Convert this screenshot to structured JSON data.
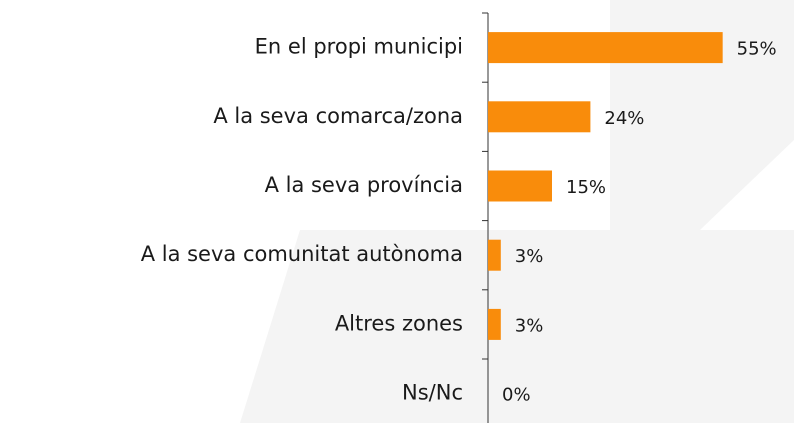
{
  "chart_data": {
    "type": "bar",
    "orientation": "horizontal",
    "categories": [
      "En el propi municipi",
      "A la seva comarca/zona",
      "A la seva província",
      "A la seva comunitat autònoma",
      "Altres zones",
      "Ns/Nc"
    ],
    "values": [
      55,
      24,
      15,
      3,
      3,
      0
    ],
    "value_labels": [
      "55%",
      "24%",
      "15%",
      "3%",
      "3%",
      "0%"
    ],
    "color": "#f98c0b",
    "xlim": [
      0,
      60
    ]
  }
}
